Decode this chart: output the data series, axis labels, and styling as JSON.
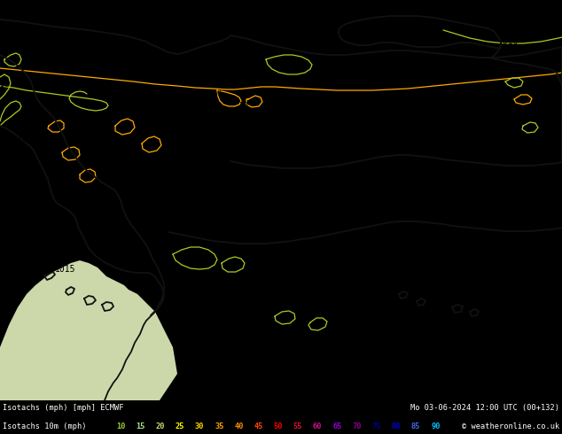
{
  "title_left": "Isotachs (mph) [mph] ECMWF",
  "title_right": "Mo 03-06-2024 12:00 UTC (00+132)",
  "subtitle_left": "Isotachs 10m (mph)",
  "copyright": "© weatheronline.co.uk",
  "map_bg": "#b5e085",
  "sea_color": "#d8e8c0",
  "footer_bg": "#000000",
  "legend_values": [
    10,
    15,
    20,
    25,
    30,
    35,
    40,
    45,
    50,
    55,
    60,
    65,
    70,
    75,
    80,
    85,
    90
  ],
  "legend_colors": [
    "#9acd32",
    "#addd8e",
    "#c8e06e",
    "#ffff00",
    "#ffd700",
    "#ffa500",
    "#ff8c00",
    "#ff4500",
    "#ff0000",
    "#dc143c",
    "#c71585",
    "#9400d3",
    "#8b008b",
    "#00008b",
    "#0000cd",
    "#4169e1",
    "#00bfff"
  ]
}
